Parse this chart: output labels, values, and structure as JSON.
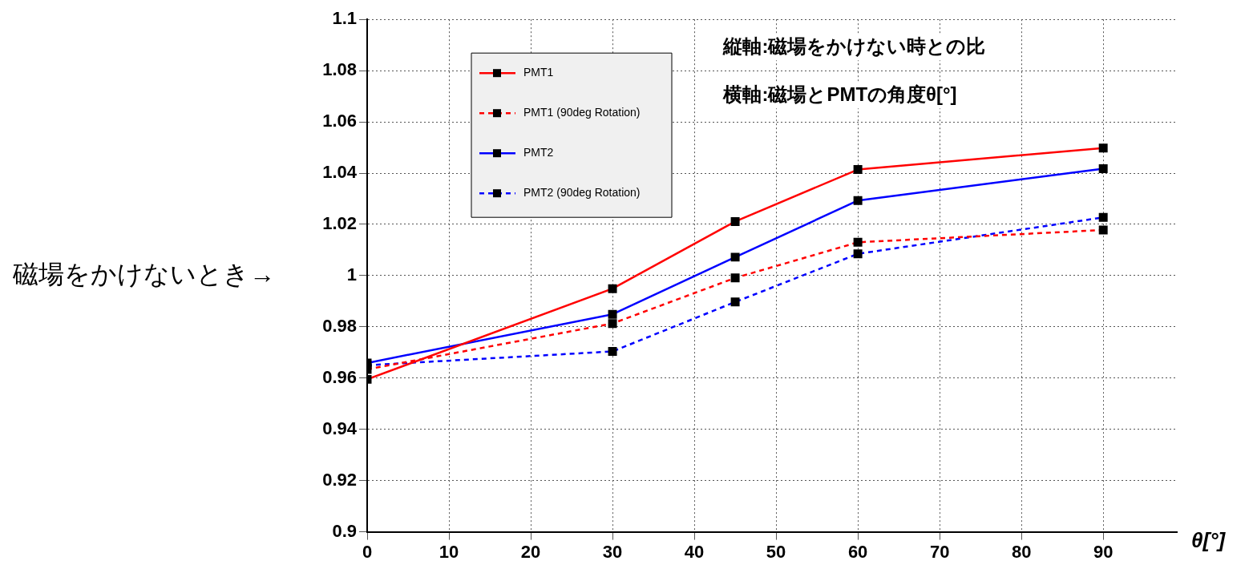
{
  "chart_data": {
    "type": "line",
    "xlabel": "θ[°]",
    "x": [
      0,
      30,
      45,
      60,
      90
    ],
    "series": [
      {
        "name": "PMT1",
        "color": "#ff0000",
        "values": [
          0.9595,
          0.9949,
          1.0211,
          1.0414,
          1.0498
        ],
        "line_style": "solid"
      },
      {
        "name": "PMT1 (90deg Rotation)",
        "color": "#ff0000",
        "values": [
          0.9634,
          0.9813,
          0.9991,
          1.013,
          1.0178
        ],
        "line_style": "dashed"
      },
      {
        "name": "PMT2",
        "color": "#0000ff",
        "values": [
          0.9659,
          0.9849,
          1.0072,
          1.0293,
          1.0417
        ],
        "line_style": "solid"
      },
      {
        "name": "PMT2 (90deg Rotation)",
        "color": "#0000ff",
        "values": [
          0.965,
          0.9704,
          0.9897,
          1.0085,
          1.0227
        ],
        "line_style": "dashed"
      }
    ],
    "xlim": [
      0,
      99
    ],
    "xticks": [
      0,
      10,
      20,
      30,
      40,
      50,
      60,
      70,
      80,
      90
    ],
    "ylim": [
      0.9,
      1.1
    ],
    "yticks": [
      0.9,
      0.92,
      0.94,
      0.96,
      0.98,
      1,
      1.02,
      1.04,
      1.06,
      1.08,
      1.1
    ],
    "grid": true,
    "legend": "top left",
    "marker": "square",
    "annotations": [
      "縦軸:磁場をかけない時との比",
      "横軸:磁場とPMTの角度θ[°]",
      "磁場をかけないとき→"
    ]
  }
}
